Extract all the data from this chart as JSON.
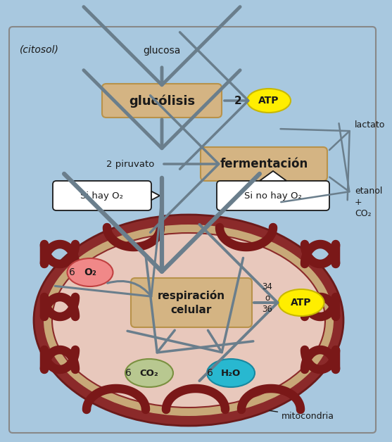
{
  "bg_color": "#a8c8df",
  "border_color": "#888888",
  "box_fill": "#d4b483",
  "box_edge": "#b8924a",
  "mito_outer_fill": "#8b2a2a",
  "mito_outer_edge": "#6b1a1a",
  "mito_tan_fill": "#c8a878",
  "mito_inner_fill": "#e8c8bc",
  "mito_inner_edge": "#8b2a2a",
  "cristae_color": "#7a1818",
  "arrow_color": "#6a7e8c",
  "text_dark": "#1a1a1a",
  "atp_fill": "#ffee00",
  "atp_edge": "#c8b800",
  "o2_fill": "#f08888",
  "o2_edge": "#c04040",
  "co2_fill": "#b8c890",
  "co2_edge": "#7a9040",
  "h2o_fill": "#28b8d0",
  "h2o_edge": "#1888a0",
  "white_box": "#ffffff",
  "citosol_label": "(citosol)",
  "glucosa_label": "glucosa",
  "glucolisis_label": "glucólisis",
  "atp2_label": "2",
  "atp_label": "ATP",
  "piruvato_label": "2 piruvato",
  "fermentacion_label": "fermentación",
  "sihay_label": "Si hay O₂",
  "sinohay_label": "Si no hay O₂",
  "lactato_label": "lactato",
  "etanol_label": "etanol\n+\nCO₂",
  "respiracion_label": "respiración\ncelular",
  "atp3436_label": "34\no\n36",
  "o2_num": "6",
  "co2_num": "6",
  "h2o_num": "6",
  "mitocondria_label": "mitocondria"
}
